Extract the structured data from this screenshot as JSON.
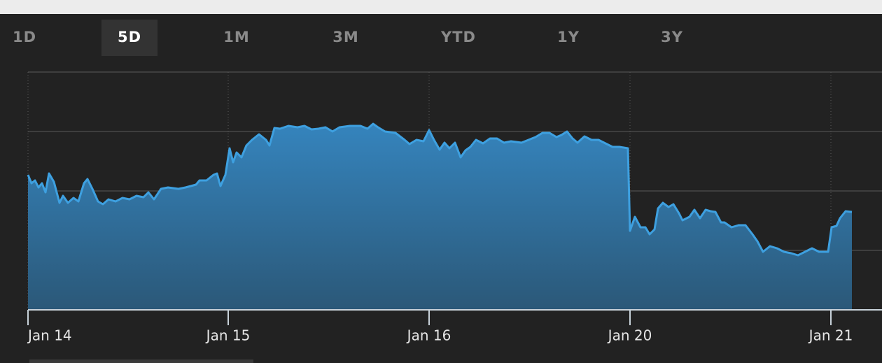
{
  "tabs": [
    "1D",
    "5D",
    "1M",
    "3M",
    "YTD",
    "1Y",
    "3Y"
  ],
  "selected_tab": "5D",
  "chart_data": {
    "type": "area",
    "color": "#3ea0e0",
    "x": [
      0,
      5,
      10,
      15,
      20,
      25,
      30,
      37,
      45,
      50,
      57,
      65,
      72,
      80,
      85,
      92,
      100,
      107,
      115,
      125,
      135,
      145,
      155,
      165,
      172,
      180,
      190,
      200,
      215,
      225,
      240,
      245,
      255,
      265,
      270,
      275,
      282,
      288,
      293,
      298,
      305,
      312,
      320,
      330,
      340,
      345,
      352,
      360,
      372,
      385,
      395,
      405,
      415,
      425,
      435,
      445,
      460,
      475,
      485,
      493,
      500,
      510,
      525,
      538,
      545,
      555,
      565,
      573,
      580,
      588,
      595,
      602,
      610,
      618,
      625,
      632,
      640,
      650,
      660,
      670,
      680,
      690,
      705,
      715,
      725,
      735,
      745,
      755,
      762,
      770,
      778,
      785,
      795,
      805,
      815,
      825,
      835,
      845,
      857,
      860,
      867,
      875,
      882,
      888,
      895,
      900,
      907,
      915,
      922,
      930,
      935,
      945,
      952,
      960,
      968,
      975,
      982,
      990,
      995,
      1005,
      1015,
      1025,
      1035,
      1042,
      1050,
      1060,
      1070,
      1080,
      1090,
      1100,
      1110,
      1120,
      1130,
      1143,
      1148,
      1155,
      1160,
      1168,
      1177
    ],
    "values": [
      193,
      181,
      185,
      175,
      181,
      168,
      195,
      183,
      153,
      163,
      153,
      160,
      155,
      181,
      187,
      173,
      155,
      151,
      158,
      155,
      160,
      158,
      163,
      161,
      168,
      158,
      173,
      175,
      173,
      175,
      179,
      185,
      185,
      193,
      195,
      177,
      193,
      231,
      211,
      225,
      218,
      235,
      243,
      251,
      243,
      235,
      260,
      259,
      263,
      261,
      263,
      258,
      259,
      261,
      255,
      261,
      263,
      263,
      259,
      266,
      261,
      255,
      253,
      243,
      237,
      243,
      241,
      257,
      243,
      229,
      239,
      231,
      239,
      218,
      228,
      233,
      243,
      238,
      245,
      245,
      239,
      241,
      239,
      243,
      247,
      253,
      253,
      247,
      250,
      255,
      245,
      239,
      248,
      243,
      243,
      238,
      233,
      233,
      231,
      113,
      133,
      118,
      118,
      108,
      115,
      145,
      153,
      147,
      151,
      138,
      128,
      133,
      143,
      131,
      143,
      141,
      140,
      125,
      125,
      118,
      121,
      121,
      108,
      98,
      83,
      91,
      88,
      83,
      81,
      78,
      83,
      88,
      83,
      83,
      118,
      120,
      131,
      141,
      140
    ],
    "xlim": [
      0,
      1220
    ],
    "ylim": [
      0,
      340
    ],
    "xticks": [
      {
        "value": 0,
        "label": "Jan 14"
      },
      {
        "value": 286,
        "label": "Jan 15"
      },
      {
        "value": 573,
        "label": "Jan 16"
      },
      {
        "value": 860,
        "label": "Jan 20"
      },
      {
        "value": 1147,
        "label": "Jan 21"
      }
    ],
    "yticks": [
      0,
      85,
      170,
      255,
      340
    ],
    "grid": true
  }
}
